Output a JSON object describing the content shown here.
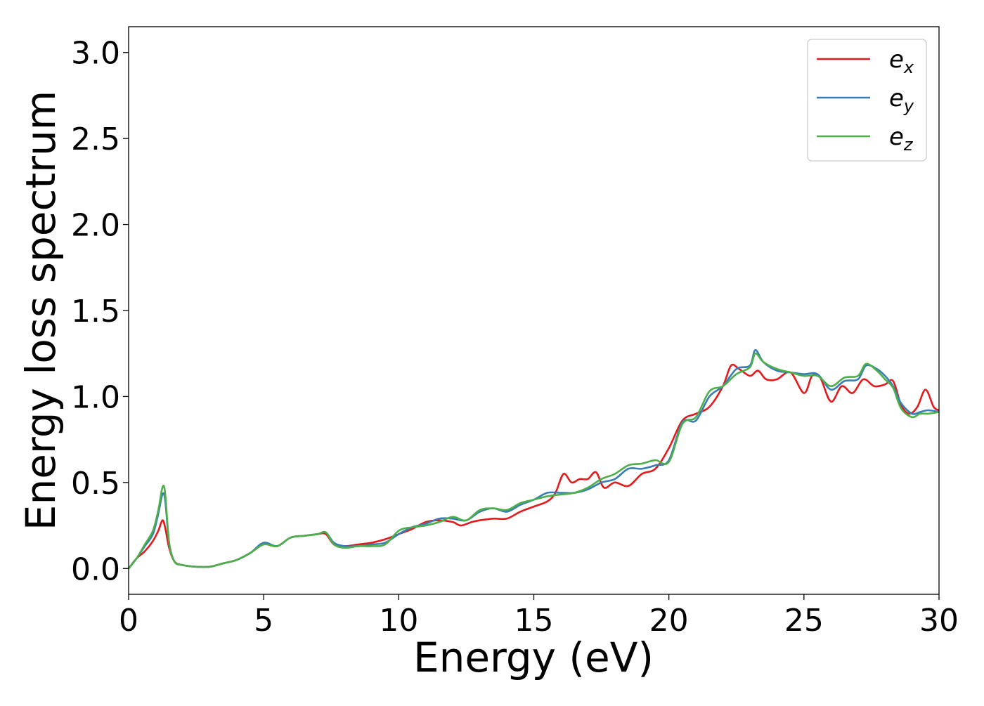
{
  "chart_data": {
    "type": "line",
    "xlabel": "Energy (eV)",
    "ylabel": "Energy loss spectrum",
    "xlim": [
      0,
      30
    ],
    "ylim": [
      -0.15,
      3.15
    ],
    "xticks": [
      0,
      5,
      10,
      15,
      20,
      25,
      30
    ],
    "xtick_labels": [
      "0",
      "5",
      "10",
      "15",
      "20",
      "25",
      "30"
    ],
    "yticks": [
      0.0,
      0.5,
      1.0,
      1.5,
      2.0,
      2.5,
      3.0
    ],
    "ytick_labels": [
      "0.0",
      "0.5",
      "1.0",
      "1.5",
      "2.0",
      "2.5",
      "3.0"
    ],
    "grid": false,
    "legend_position": "top-right",
    "series": [
      {
        "name": "e_x",
        "name_main": "e",
        "name_sub": "x",
        "color": "#e41a1c",
        "x": [
          0,
          0.3,
          0.6,
          0.9,
          1.1,
          1.25,
          1.35,
          1.5,
          1.7,
          2.0,
          2.5,
          3.0,
          3.5,
          4.0,
          4.5,
          5.0,
          5.5,
          6.0,
          6.5,
          7.0,
          7.3,
          7.6,
          8.0,
          8.5,
          9.0,
          9.5,
          10.0,
          10.5,
          11.0,
          11.5,
          12.0,
          12.3,
          12.7,
          13.0,
          13.5,
          14.0,
          14.5,
          15.0,
          15.5,
          15.8,
          16.1,
          16.4,
          16.7,
          17.0,
          17.3,
          17.6,
          18.0,
          18.5,
          19.0,
          19.5,
          20.0,
          20.5,
          21.0,
          21.5,
          22.0,
          22.3,
          22.6,
          23.0,
          23.3,
          23.6,
          24.0,
          24.5,
          25.0,
          25.3,
          25.6,
          26.0,
          26.4,
          26.8,
          27.2,
          27.6,
          28.0,
          28.3,
          28.6,
          28.9,
          29.2,
          29.5,
          29.8,
          30.0
        ],
        "values": [
          0.0,
          0.06,
          0.1,
          0.16,
          0.22,
          0.28,
          0.24,
          0.12,
          0.04,
          0.02,
          0.01,
          0.01,
          0.03,
          0.05,
          0.09,
          0.14,
          0.13,
          0.18,
          0.19,
          0.2,
          0.2,
          0.14,
          0.13,
          0.14,
          0.15,
          0.17,
          0.2,
          0.23,
          0.27,
          0.28,
          0.27,
          0.25,
          0.27,
          0.28,
          0.29,
          0.29,
          0.33,
          0.36,
          0.39,
          0.44,
          0.55,
          0.5,
          0.52,
          0.52,
          0.56,
          0.47,
          0.5,
          0.48,
          0.55,
          0.58,
          0.7,
          0.86,
          0.9,
          0.94,
          1.06,
          1.18,
          1.16,
          1.12,
          1.15,
          1.1,
          1.1,
          1.14,
          1.02,
          1.12,
          1.11,
          0.97,
          1.06,
          1.02,
          1.1,
          1.06,
          1.07,
          1.09,
          0.95,
          0.9,
          0.94,
          1.04,
          0.94,
          0.92
        ]
      },
      {
        "name": "e_y",
        "name_main": "e",
        "name_sub": "y",
        "color": "#377eb8",
        "x": [
          0,
          0.3,
          0.6,
          0.9,
          1.1,
          1.25,
          1.35,
          1.5,
          1.7,
          2.0,
          2.5,
          3.0,
          3.5,
          4.0,
          4.5,
          5.0,
          5.5,
          6.0,
          6.5,
          7.0,
          7.3,
          7.6,
          8.0,
          8.5,
          9.0,
          9.5,
          10.0,
          10.5,
          11.0,
          11.5,
          12.0,
          12.5,
          13.0,
          13.5,
          14.0,
          14.5,
          15.0,
          15.5,
          16.0,
          16.5,
          17.0,
          17.5,
          18.0,
          18.5,
          19.0,
          19.5,
          20.0,
          20.5,
          21.0,
          21.5,
          22.0,
          22.5,
          23.0,
          23.2,
          23.5,
          24.0,
          24.5,
          25.0,
          25.5,
          26.0,
          26.5,
          27.0,
          27.3,
          27.7,
          28.0,
          28.3,
          28.6,
          29.0,
          29.3,
          29.6,
          30.0
        ],
        "values": [
          0.0,
          0.06,
          0.13,
          0.2,
          0.32,
          0.43,
          0.4,
          0.15,
          0.04,
          0.02,
          0.01,
          0.01,
          0.03,
          0.05,
          0.09,
          0.15,
          0.13,
          0.18,
          0.19,
          0.2,
          0.21,
          0.15,
          0.13,
          0.13,
          0.14,
          0.15,
          0.2,
          0.24,
          0.26,
          0.29,
          0.29,
          0.28,
          0.33,
          0.35,
          0.33,
          0.37,
          0.4,
          0.44,
          0.44,
          0.44,
          0.46,
          0.5,
          0.52,
          0.58,
          0.58,
          0.6,
          0.63,
          0.85,
          0.86,
          1.0,
          1.06,
          1.16,
          1.18,
          1.27,
          1.2,
          1.15,
          1.14,
          1.13,
          1.13,
          1.04,
          1.09,
          1.1,
          1.18,
          1.16,
          1.12,
          1.06,
          0.96,
          0.9,
          0.91,
          0.92,
          0.91
        ]
      },
      {
        "name": "e_z",
        "name_main": "e",
        "name_sub": "z",
        "color": "#4daf4a",
        "x": [
          0,
          0.3,
          0.6,
          0.9,
          1.1,
          1.25,
          1.35,
          1.5,
          1.7,
          2.0,
          2.5,
          3.0,
          3.5,
          4.0,
          4.5,
          5.0,
          5.5,
          6.0,
          6.5,
          7.0,
          7.3,
          7.6,
          8.0,
          8.5,
          9.0,
          9.5,
          10.0,
          10.5,
          11.0,
          11.5,
          12.0,
          12.5,
          13.0,
          13.5,
          14.0,
          14.5,
          15.0,
          15.5,
          16.0,
          16.5,
          17.0,
          17.5,
          18.0,
          18.5,
          19.0,
          19.5,
          20.0,
          20.5,
          21.0,
          21.5,
          22.0,
          22.5,
          23.0,
          23.2,
          23.5,
          24.0,
          24.5,
          25.0,
          25.5,
          26.0,
          26.5,
          27.0,
          27.3,
          27.7,
          28.0,
          28.3,
          28.6,
          29.0,
          29.3,
          29.6,
          30.0
        ],
        "values": [
          0.0,
          0.06,
          0.14,
          0.22,
          0.34,
          0.47,
          0.44,
          0.15,
          0.04,
          0.02,
          0.01,
          0.01,
          0.03,
          0.05,
          0.09,
          0.14,
          0.13,
          0.18,
          0.19,
          0.2,
          0.21,
          0.14,
          0.12,
          0.13,
          0.13,
          0.14,
          0.22,
          0.24,
          0.25,
          0.27,
          0.3,
          0.28,
          0.34,
          0.35,
          0.34,
          0.38,
          0.4,
          0.42,
          0.43,
          0.44,
          0.47,
          0.52,
          0.55,
          0.6,
          0.61,
          0.63,
          0.62,
          0.84,
          0.88,
          1.03,
          1.06,
          1.13,
          1.17,
          1.25,
          1.2,
          1.16,
          1.14,
          1.12,
          1.12,
          1.06,
          1.11,
          1.12,
          1.19,
          1.15,
          1.1,
          1.05,
          0.93,
          0.88,
          0.9,
          0.9,
          0.91
        ]
      }
    ]
  }
}
